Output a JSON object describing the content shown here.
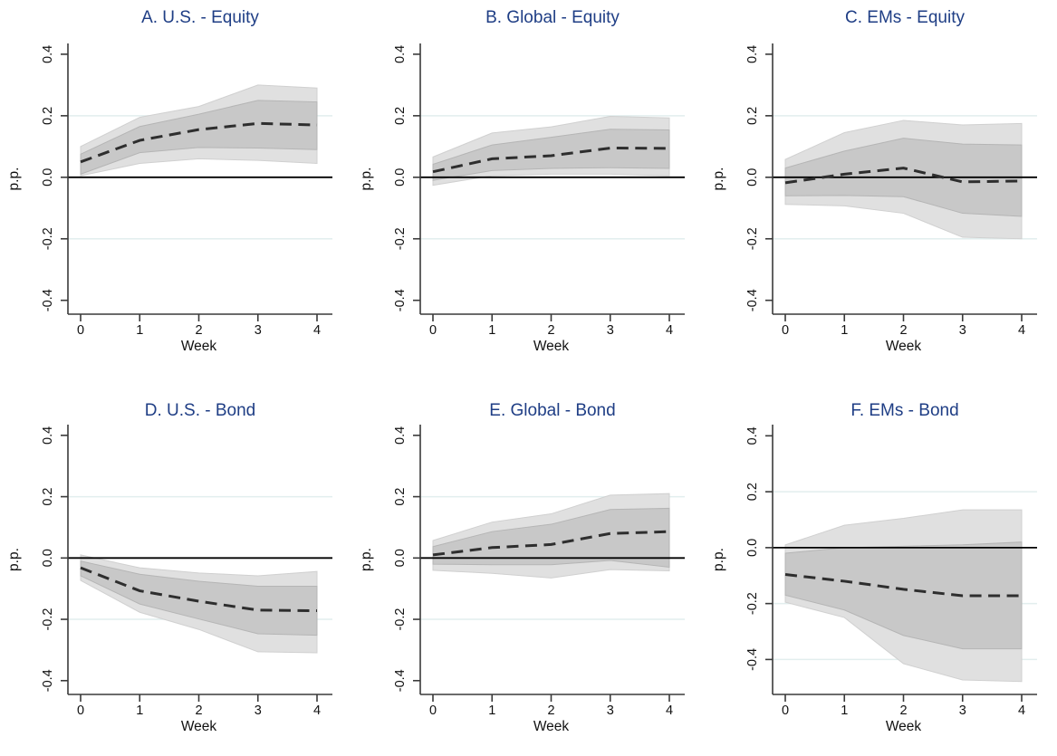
{
  "figure": {
    "background": "#ffffff",
    "rows": 2,
    "cols": 3,
    "note": "Impulse responses with inner and outer confidence bands"
  },
  "style": {
    "title_color": "#1f3e85",
    "grid_color": "#e2eeee",
    "axis_color": "#3a3a3a",
    "zero_line_color": "#000000",
    "median_color": "#2e2e2e",
    "inner_band_fill": "#c8c8c8",
    "inner_band_edge": "#b5b5b5",
    "outer_band_fill": "#e0e0e0",
    "outer_band_edge": "#d0d0d0",
    "tick_label_color": "#111111"
  },
  "chart_data": [
    {
      "type": "line",
      "title": "A. U.S. - Equity",
      "xlabel": "Week",
      "ylabel": "p.p.",
      "x": [
        0,
        1,
        2,
        3,
        4
      ],
      "xticks": [
        0,
        1,
        2,
        3,
        4
      ],
      "yticks": [
        0.4,
        0.2,
        0.0,
        -0.2,
        -0.4
      ],
      "gridlines": [
        0.2,
        -0.2
      ],
      "ylim": [
        -0.445,
        0.435
      ],
      "series": [
        {
          "name": "outer-band",
          "role": "band",
          "upper": [
            0.1,
            0.195,
            0.23,
            0.3,
            0.29
          ],
          "lower": [
            0.005,
            0.045,
            0.06,
            0.055,
            0.045
          ]
        },
        {
          "name": "inner-band",
          "role": "band",
          "upper": [
            0.075,
            0.165,
            0.205,
            0.25,
            0.245
          ],
          "lower": [
            0.01,
            0.08,
            0.097,
            0.095,
            0.09
          ]
        },
        {
          "name": "point-estimate",
          "role": "line",
          "values": [
            0.05,
            0.12,
            0.155,
            0.175,
            0.17
          ]
        }
      ]
    },
    {
      "type": "line",
      "title": "B. Global - Equity",
      "xlabel": "Week",
      "ylabel": "p.p.",
      "x": [
        0,
        1,
        2,
        3,
        4
      ],
      "xticks": [
        0,
        1,
        2,
        3,
        4
      ],
      "yticks": [
        0.4,
        0.2,
        0.0,
        -0.2,
        -0.4
      ],
      "gridlines": [
        0.2,
        -0.2
      ],
      "ylim": [
        -0.445,
        0.435
      ],
      "series": [
        {
          "name": "outer-band",
          "role": "band",
          "upper": [
            0.066,
            0.144,
            0.164,
            0.198,
            0.193
          ],
          "lower": [
            -0.026,
            0.005,
            0.01,
            0.01,
            0.005
          ]
        },
        {
          "name": "inner-band",
          "role": "band",
          "upper": [
            0.042,
            0.105,
            0.13,
            0.156,
            0.154
          ],
          "lower": [
            -0.01,
            0.022,
            0.029,
            0.031,
            0.029
          ]
        },
        {
          "name": "point-estimate",
          "role": "line",
          "values": [
            0.018,
            0.06,
            0.07,
            0.095,
            0.094
          ]
        }
      ]
    },
    {
      "type": "line",
      "title": "C. EMs - Equity",
      "xlabel": "Week",
      "ylabel": "p.p.",
      "x": [
        0,
        1,
        2,
        3,
        4
      ],
      "xticks": [
        0,
        1,
        2,
        3,
        4
      ],
      "yticks": [
        0.4,
        0.2,
        0.0,
        -0.2,
        -0.4
      ],
      "gridlines": [
        0.2,
        -0.2
      ],
      "ylim": [
        -0.445,
        0.435
      ],
      "series": [
        {
          "name": "outer-band",
          "role": "band",
          "upper": [
            0.058,
            0.145,
            0.185,
            0.17,
            0.175
          ],
          "lower": [
            -0.088,
            -0.093,
            -0.117,
            -0.195,
            -0.2
          ]
        },
        {
          "name": "inner-band",
          "role": "band",
          "upper": [
            0.03,
            0.085,
            0.127,
            0.108,
            0.105
          ],
          "lower": [
            -0.06,
            -0.059,
            -0.063,
            -0.117,
            -0.127
          ]
        },
        {
          "name": "point-estimate",
          "role": "line",
          "values": [
            -0.018,
            0.01,
            0.03,
            -0.015,
            -0.012
          ]
        }
      ]
    },
    {
      "type": "line",
      "title": "D. U.S. - Bond",
      "xlabel": "Week",
      "ylabel": "p.p.",
      "x": [
        0,
        1,
        2,
        3,
        4
      ],
      "xticks": [
        0,
        1,
        2,
        3,
        4
      ],
      "yticks": [
        0.4,
        0.2,
        0.0,
        -0.2,
        -0.4
      ],
      "gridlines": [
        0.2,
        -0.2
      ],
      "ylim": [
        -0.445,
        0.435
      ],
      "series": [
        {
          "name": "outer-band",
          "role": "band",
          "upper": [
            0.01,
            -0.032,
            -0.049,
            -0.058,
            -0.044
          ],
          "lower": [
            -0.073,
            -0.177,
            -0.233,
            -0.306,
            -0.309
          ]
        },
        {
          "name": "inner-band",
          "role": "band",
          "upper": [
            -0.01,
            -0.053,
            -0.076,
            -0.092,
            -0.092
          ],
          "lower": [
            -0.058,
            -0.15,
            -0.199,
            -0.247,
            -0.252
          ]
        },
        {
          "name": "point-estimate",
          "role": "line",
          "values": [
            -0.032,
            -0.107,
            -0.141,
            -0.17,
            -0.172
          ]
        }
      ]
    },
    {
      "type": "line",
      "title": "E. Global - Bond",
      "xlabel": "Week",
      "ylabel": "p.p.",
      "x": [
        0,
        1,
        2,
        3,
        4
      ],
      "xticks": [
        0,
        1,
        2,
        3,
        4
      ],
      "yticks": [
        0.4,
        0.2,
        0.0,
        -0.2,
        -0.4
      ],
      "gridlines": [
        0.2,
        -0.2
      ],
      "ylim": [
        -0.445,
        0.435
      ],
      "series": [
        {
          "name": "outer-band",
          "role": "band",
          "upper": [
            0.057,
            0.117,
            0.144,
            0.205,
            0.21
          ],
          "lower": [
            -0.04,
            -0.05,
            -0.065,
            -0.038,
            -0.042
          ]
        },
        {
          "name": "inner-band",
          "role": "band",
          "upper": [
            0.037,
            0.086,
            0.11,
            0.158,
            0.162
          ],
          "lower": [
            -0.02,
            -0.022,
            -0.022,
            -0.008,
            -0.03
          ]
        },
        {
          "name": "point-estimate",
          "role": "line",
          "values": [
            0.01,
            0.034,
            0.044,
            0.08,
            0.086
          ]
        }
      ]
    },
    {
      "type": "line",
      "title": "F. EMs - Bond",
      "xlabel": "Week",
      "ylabel": "p.p.",
      "x": [
        0,
        1,
        2,
        3,
        4
      ],
      "xticks": [
        0,
        1,
        2,
        3,
        4
      ],
      "yticks": [
        0.4,
        0.2,
        0.0,
        -0.2,
        -0.4
      ],
      "gridlines": [
        0.2,
        -0.2,
        -0.4
      ],
      "ylim": [
        -0.525,
        0.44
      ],
      "series": [
        {
          "name": "outer-band",
          "role": "band",
          "upper": [
            0.01,
            0.08,
            0.105,
            0.135,
            0.135
          ],
          "lower": [
            -0.195,
            -0.25,
            -0.415,
            -0.473,
            -0.479
          ]
        },
        {
          "name": "inner-band",
          "role": "band",
          "upper": [
            -0.02,
            0.0,
            0.005,
            0.01,
            0.02
          ],
          "lower": [
            -0.17,
            -0.223,
            -0.314,
            -0.362,
            -0.362
          ]
        },
        {
          "name": "point-estimate",
          "role": "line",
          "values": [
            -0.096,
            -0.12,
            -0.149,
            -0.172,
            -0.172
          ]
        }
      ]
    }
  ]
}
